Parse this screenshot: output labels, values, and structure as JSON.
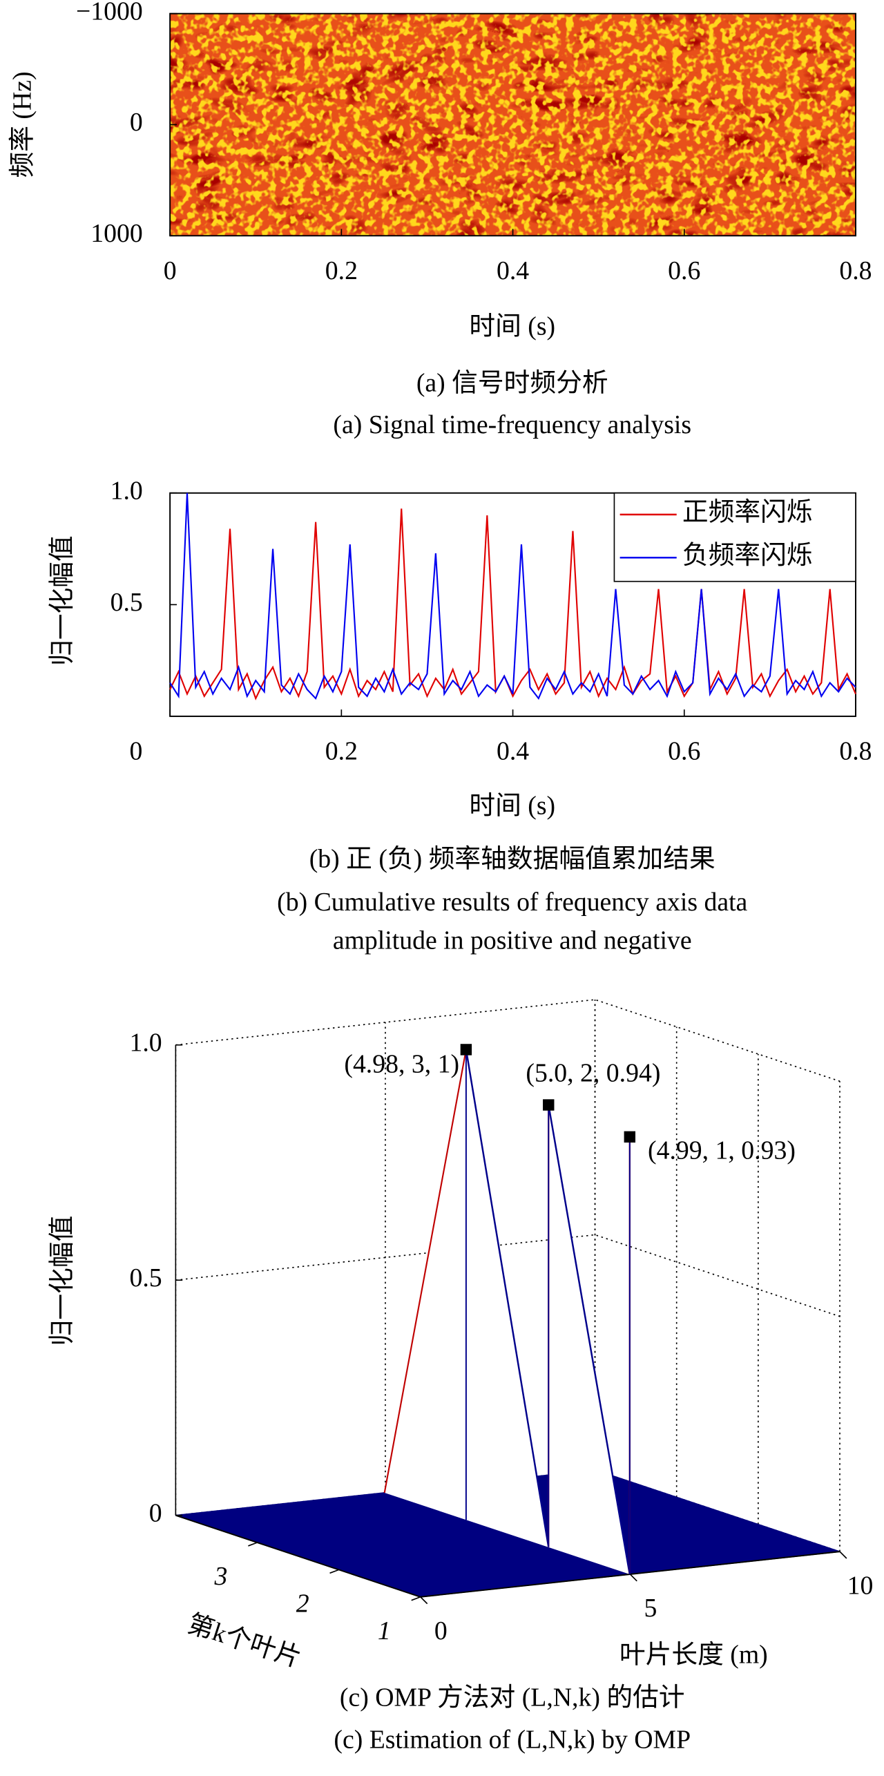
{
  "chart_data": [
    {
      "type": "heatmap",
      "xlabel": "时间 (s)",
      "ylabel": "频率 (Hz)",
      "xlim": [
        0,
        0.8
      ],
      "xticks": [
        0,
        0.2,
        0.4,
        0.6,
        0.8
      ],
      "ylim": [
        -1000,
        1000
      ],
      "yticks": [
        {
          "value": -1000,
          "label": "−1000"
        },
        0,
        1000
      ],
      "y_reversed": true,
      "colormap": [
        "#a80000",
        "#e8501a",
        "#ffd81c"
      ],
      "caption": [
        "(a) 信号时频分析",
        "(a) Signal time-frequency analysis"
      ]
    },
    {
      "type": "line",
      "xlabel": "时间 (s)",
      "ylabel": "归一化幅值",
      "xlim": [
        0,
        0.8
      ],
      "xticks": [
        0,
        0.2,
        0.4,
        0.6,
        0.8
      ],
      "ylim": [
        0,
        1
      ],
      "yticks": [
        0.5,
        {
          "value": 1,
          "label": "1.0"
        }
      ],
      "legend": "upper right",
      "x": [
        0,
        0.01,
        0.02,
        0.03,
        0.04,
        0.05,
        0.06,
        0.07,
        0.08,
        0.09,
        0.1,
        0.11,
        0.12,
        0.13,
        0.14,
        0.15,
        0.16,
        0.17,
        0.18,
        0.19,
        0.2,
        0.21,
        0.22,
        0.23,
        0.24,
        0.25,
        0.26,
        0.27,
        0.28,
        0.29,
        0.3,
        0.31,
        0.32,
        0.33,
        0.34,
        0.35,
        0.36,
        0.37,
        0.38,
        0.39,
        0.4,
        0.41,
        0.42,
        0.43,
        0.44,
        0.45,
        0.46,
        0.47,
        0.48,
        0.49,
        0.5,
        0.51,
        0.52,
        0.53,
        0.54,
        0.55,
        0.56,
        0.57,
        0.58,
        0.59,
        0.6,
        0.61,
        0.62,
        0.63,
        0.64,
        0.65,
        0.66,
        0.67,
        0.68,
        0.69,
        0.7,
        0.71,
        0.72,
        0.73,
        0.74,
        0.75,
        0.76,
        0.77,
        0.78,
        0.79,
        0.8
      ],
      "series": [
        {
          "name": "正频率闪烁",
          "color": "#e00000",
          "values": [
            0.12,
            0.2,
            0.1,
            0.18,
            0.09,
            0.15,
            0.21,
            0.84,
            0.12,
            0.19,
            0.08,
            0.16,
            0.22,
            0.11,
            0.17,
            0.09,
            0.2,
            0.87,
            0.13,
            0.18,
            0.1,
            0.21,
            0.09,
            0.16,
            0.12,
            0.2,
            0.11,
            0.93,
            0.14,
            0.19,
            0.09,
            0.17,
            0.12,
            0.21,
            0.1,
            0.15,
            0.2,
            0.9,
            0.11,
            0.18,
            0.09,
            0.16,
            0.21,
            0.12,
            0.19,
            0.1,
            0.15,
            0.83,
            0.13,
            0.2,
            0.09,
            0.17,
            0.12,
            0.22,
            0.1,
            0.16,
            0.19,
            0.57,
            0.11,
            0.18,
            0.09,
            0.15,
            0.57,
            0.12,
            0.2,
            0.1,
            0.17,
            0.57,
            0.13,
            0.19,
            0.09,
            0.16,
            0.21,
            0.11,
            0.18,
            0.1,
            0.15,
            0.57,
            0.12,
            0.19,
            0.1
          ]
        },
        {
          "name": "负频率闪烁",
          "color": "#0000f0",
          "values": [
            0.15,
            0.09,
            1,
            0.13,
            0.2,
            0.1,
            0.17,
            0.12,
            0.22,
            0.09,
            0.16,
            0.11,
            0.75,
            0.14,
            0.1,
            0.19,
            0.12,
            0.08,
            0.18,
            0.11,
            0.2,
            0.77,
            0.13,
            0.09,
            0.17,
            0.11,
            0.21,
            0.1,
            0.15,
            0.12,
            0.19,
            0.73,
            0.1,
            0.16,
            0.12,
            0.2,
            0.09,
            0.14,
            0.11,
            0.18,
            0.1,
            0.77,
            0.13,
            0.08,
            0.17,
            0.12,
            0.2,
            0.1,
            0.15,
            0.11,
            0.19,
            0.09,
            0.57,
            0.14,
            0.1,
            0.18,
            0.12,
            0.16,
            0.09,
            0.2,
            0.11,
            0.15,
            0.57,
            0.1,
            0.17,
            0.12,
            0.19,
            0.09,
            0.14,
            0.11,
            0.18,
            0.57,
            0.1,
            0.16,
            0.12,
            0.2,
            0.09,
            0.15,
            0.11,
            0.17,
            0.13
          ]
        }
      ],
      "caption": [
        "(b) 正 (负) 频率轴数据幅值累加结果",
        "(b) Cumulative results of frequency axis data",
        "amplitude in positive and negative"
      ]
    },
    {
      "type": "stem3d",
      "xlabel": "叶片长度 (m)",
      "klabel": "第k个叶片",
      "zlabel": "归一化幅值",
      "x": [
        4.98,
        5.0,
        4.99
      ],
      "k": [
        3,
        2,
        1
      ],
      "values": [
        1,
        0.94,
        0.93
      ],
      "value_labels": [
        "(4.98, 3, 1)",
        "(5.0, 2, 0.94)",
        "(4.99, 1, 0.93)"
      ],
      "xlim": [
        0,
        10
      ],
      "xticks": [
        0,
        5,
        10
      ],
      "klim": [
        1,
        4
      ],
      "kticks": [
        1,
        2,
        3
      ],
      "zlim": [
        0,
        1
      ],
      "zticks": [
        0,
        0.5,
        {
          "value": 1,
          "label": "1.0"
        }
      ],
      "grid": true,
      "surface_color": "#000080",
      "edge_colors": [
        "#c00000",
        "#00008b"
      ],
      "caption": [
        "(c) OMP 方法对 (L,N,k) 的估计",
        "(c) Estimation of (L,N,k) by OMP"
      ]
    }
  ]
}
